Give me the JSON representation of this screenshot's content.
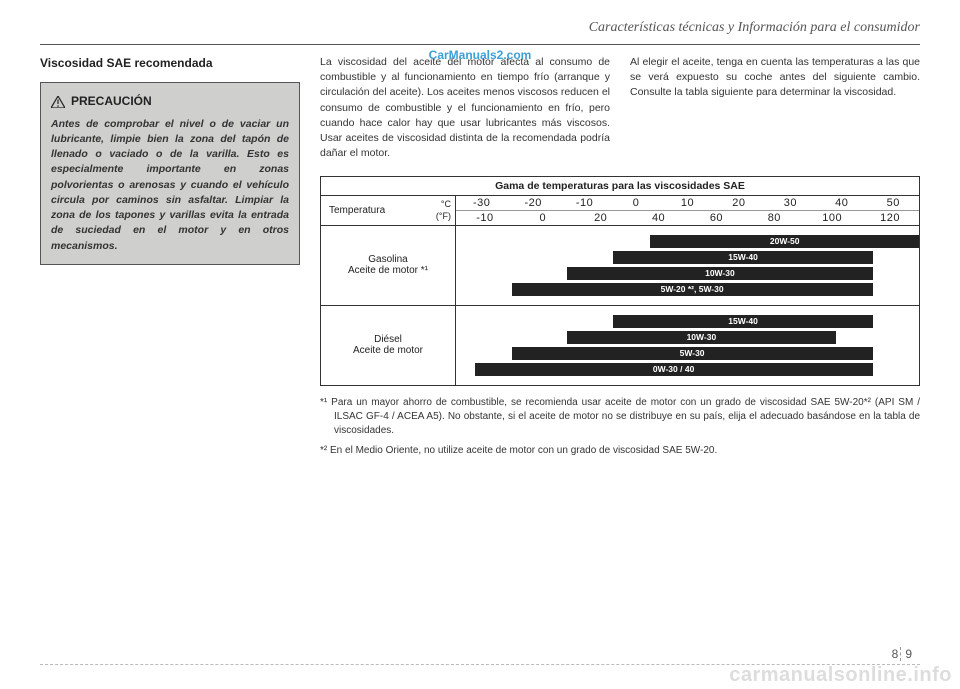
{
  "header": "Características técnicas y Información para el consumidor",
  "watermark_top": "CarManuals2.com",
  "watermark_bottom": "carmanualsonline.info",
  "page_number_left": "8",
  "page_number_right": "9",
  "section_title": "Viscosidad SAE recomendada",
  "caution": {
    "title": "PRECAUCIÓN",
    "body": "Antes de comprobar el nivel o de vaciar un lubricante, limpie bien la zona del tapón de llenado o vaciado o de la varilla. Esto es especialmente importante en zonas polvorientas o arenosas y cuando el vehículo circula por caminos sin asfaltar. Limpiar la zona de los tapones y varillas evita la entrada de suciedad en el motor y en otros mecanismos."
  },
  "column_mid": "La viscosidad del aceite del motor afecta al consumo de combustible y al funcionamiento en tiempo frío (arranque y circulación del aceite). Los aceites menos viscosos reducen el consumo de combustible y el funcionamiento en frío, pero cuando hace calor hay que usar lubricantes más viscosos. Usar aceites de viscosidad distinta de la recomendada podría dañar el motor.",
  "column_right": "Al elegir el aceite, tenga en cuenta las temperaturas a las que se verá expuesto su coche antes del siguiente cambio. Consulte la tabla siguiente para determinar la viscosidad.",
  "table": {
    "title": "Gama de temperaturas para las viscosidades SAE",
    "temp_label": "Temperatura",
    "unit_c": "°C",
    "unit_f": "(°F)",
    "scale_c": [
      "-30",
      "-20",
      "-10",
      "0",
      "10",
      "20",
      "30",
      "40",
      "50"
    ],
    "scale_f": [
      "-10",
      "0",
      "20",
      "40",
      "60",
      "80",
      "100",
      "120"
    ],
    "rows": [
      {
        "label_line1": "Gasolina",
        "label_line2": "Aceite de motor *¹",
        "bars": [
          {
            "label": "20W-50",
            "start_pct": 42,
            "end_pct": 100
          },
          {
            "label": "15W-40",
            "start_pct": 34,
            "end_pct": 90
          },
          {
            "label": "10W-30",
            "start_pct": 24,
            "end_pct": 90
          },
          {
            "label": "5W-20 *², 5W-30",
            "start_pct": 12,
            "end_pct": 90
          }
        ]
      },
      {
        "label_line1": "Diésel",
        "label_line2": "Aceite de motor",
        "bars": [
          {
            "label": "15W-40",
            "start_pct": 34,
            "end_pct": 90
          },
          {
            "label": "10W-30",
            "start_pct": 24,
            "end_pct": 82
          },
          {
            "label": "5W-30",
            "start_pct": 12,
            "end_pct": 90
          },
          {
            "label": "0W-30 / 40",
            "start_pct": 4,
            "end_pct": 90
          }
        ]
      }
    ],
    "bar_bg": "#222222",
    "bar_text": "#ffffff"
  },
  "footnotes": {
    "f1_prefix": "*¹",
    "f1": "Para un mayor ahorro de combustible, se recomienda usar aceite de motor con un grado de viscosidad SAE 5W-20*² (API SM / ILSAC GF-4 / ACEA A5). No obstante, si el aceite de motor no se distribuye en su país, elija el adecuado basándose en la tabla de viscosidades.",
    "f2_prefix": "*²",
    "f2": "En el Medio Oriente, no utilize aceite de motor con un grado de viscosidad SAE 5W-20."
  }
}
